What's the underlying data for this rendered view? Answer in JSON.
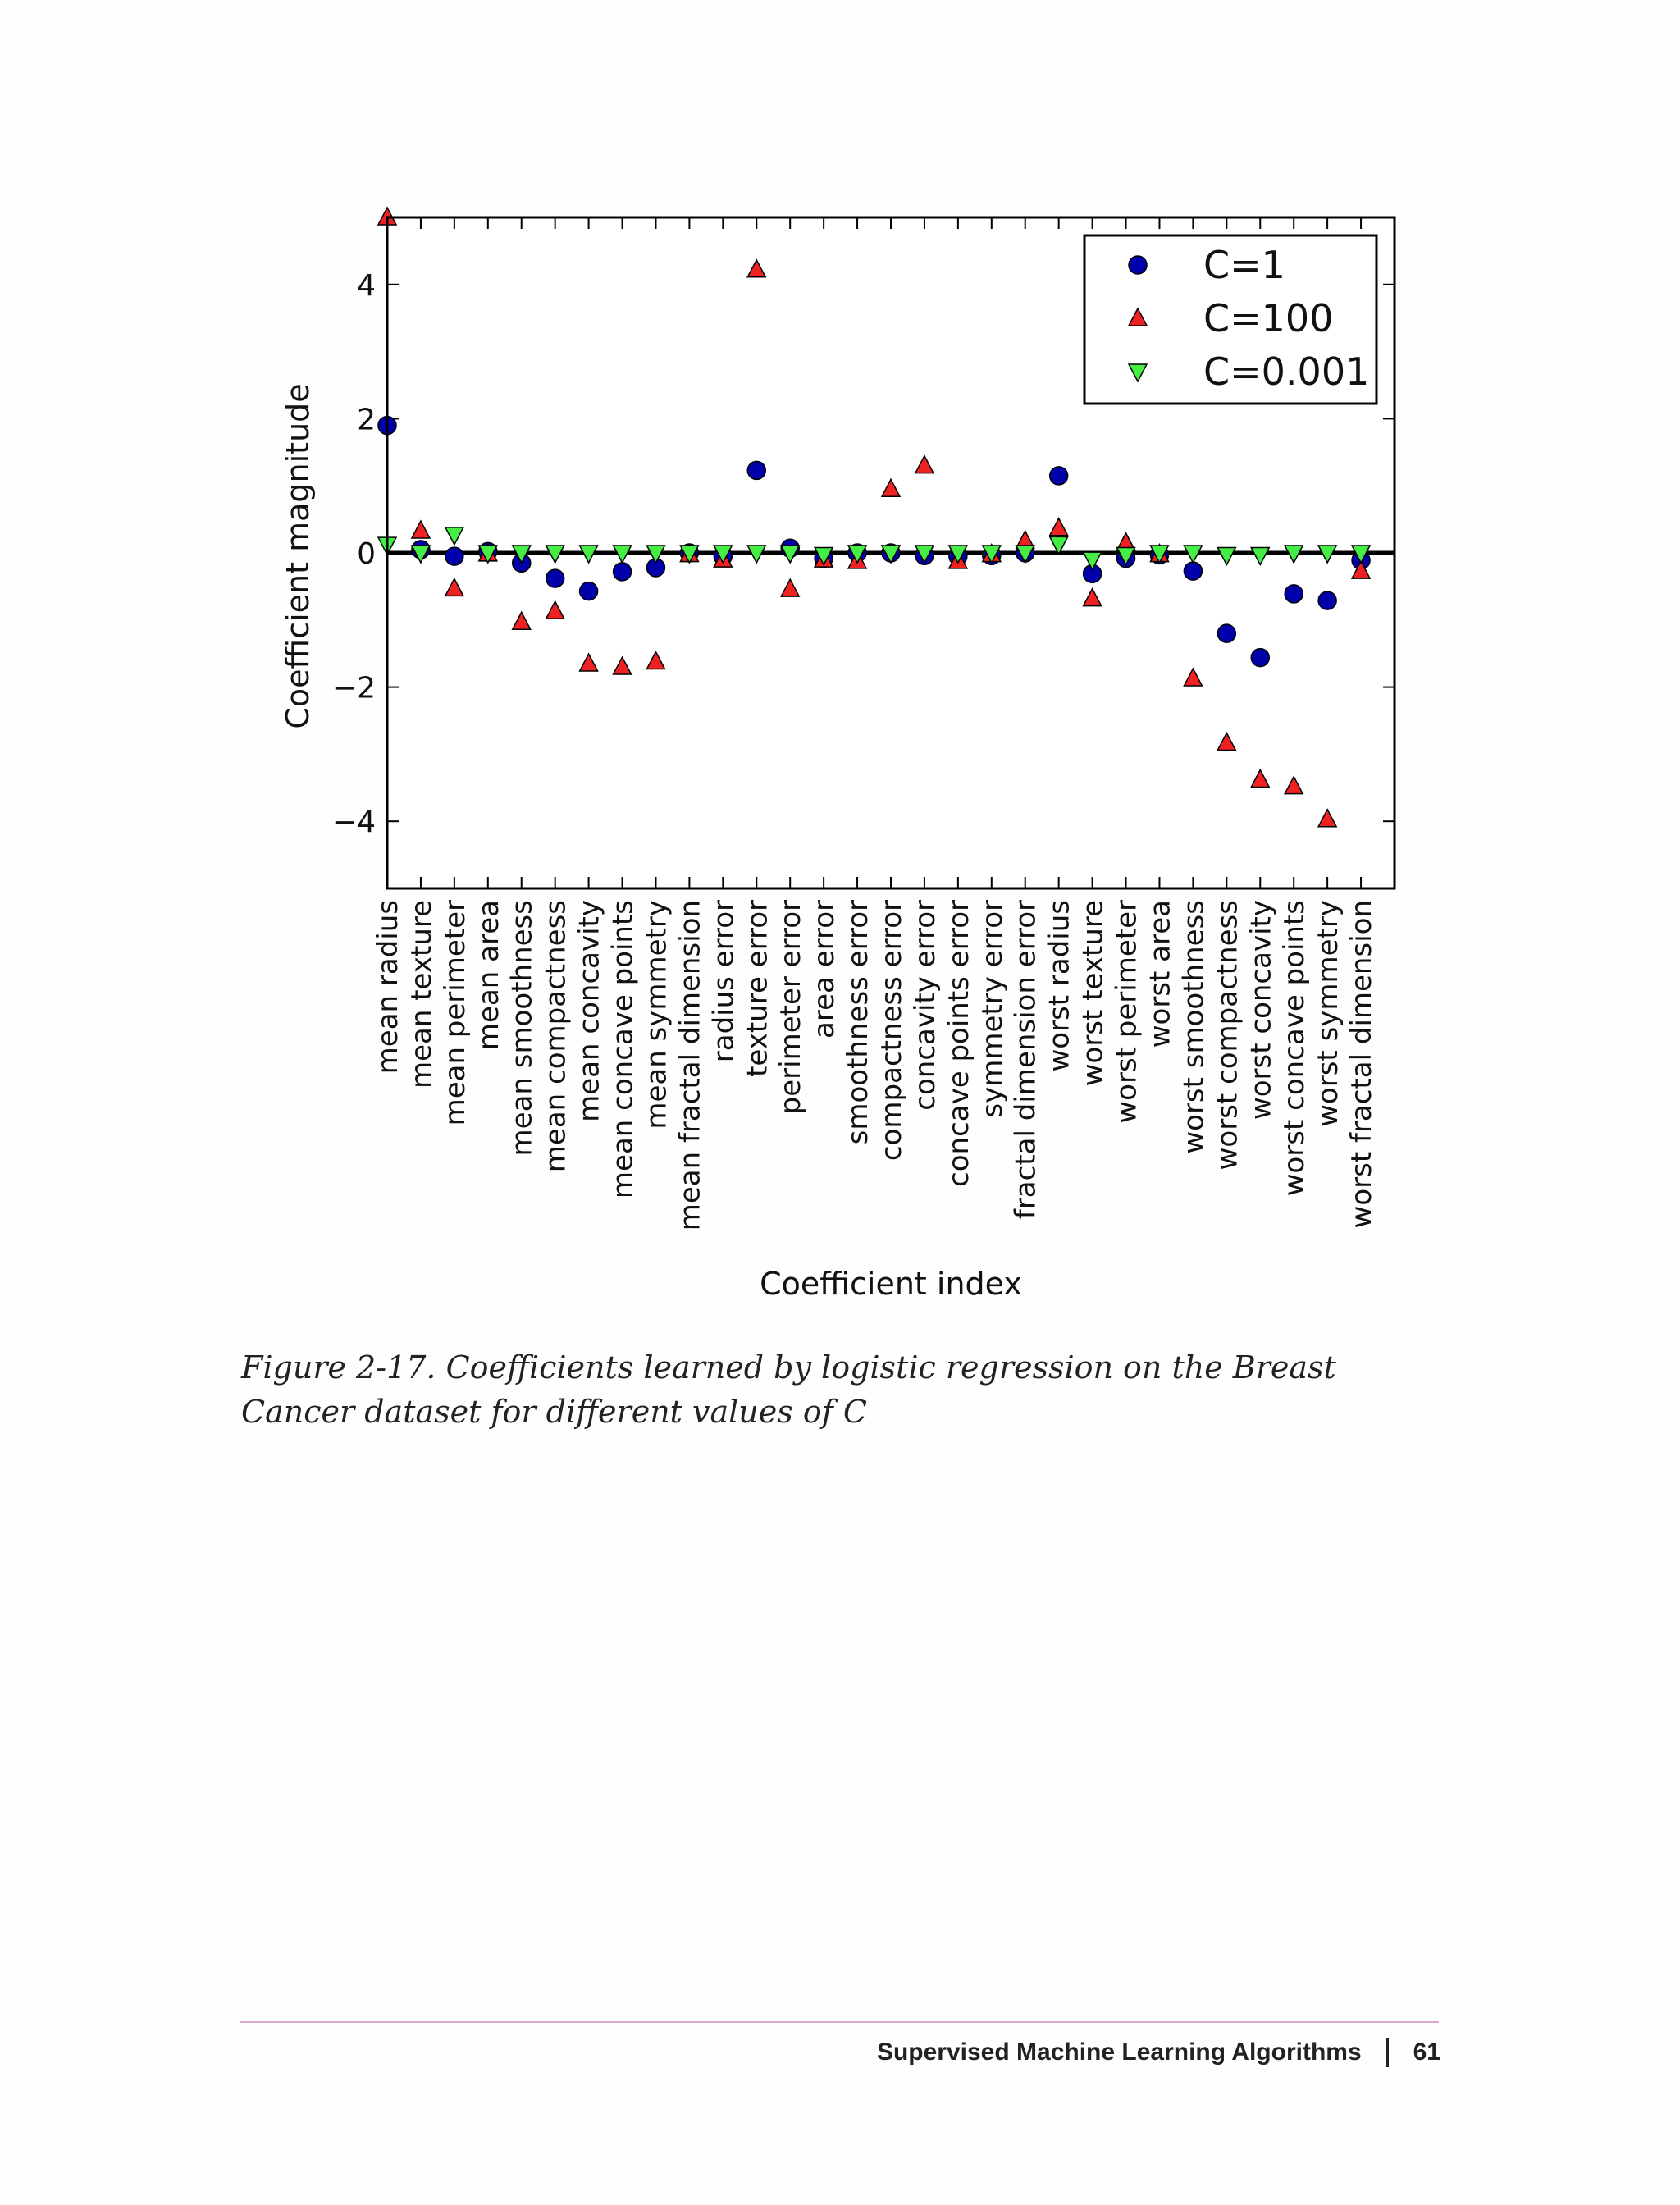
{
  "chart_data": {
    "type": "scatter",
    "xlabel": "Coefficient index",
    "ylabel": "Coefficient magnitude",
    "ylim": [
      -5,
      5
    ],
    "yticks": [
      4,
      2,
      0,
      -2,
      -4
    ],
    "ytick_labels": [
      "4",
      "2",
      "0",
      "−2",
      "−4"
    ],
    "legend_position": "top-right",
    "grid": false,
    "zero_line": true,
    "categories": [
      "mean radius",
      "mean texture",
      "mean perimeter",
      "mean area",
      "mean smoothness",
      "mean compactness",
      "mean concavity",
      "mean concave points",
      "mean symmetry",
      "mean fractal dimension",
      "radius error",
      "texture error",
      "perimeter error",
      "area error",
      "smoothness error",
      "compactness error",
      "concavity error",
      "concave points error",
      "symmetry error",
      "fractal dimension error",
      "worst radius",
      "worst texture",
      "worst perimeter",
      "worst area",
      "worst smoothness",
      "worst compactness",
      "worst concavity",
      "worst concave points",
      "worst symmetry",
      "worst fractal dimension"
    ],
    "series": [
      {
        "name": "C=1",
        "marker": "circle",
        "color": "#0000aa",
        "values": [
          1.9,
          0.05,
          -0.05,
          0.02,
          -0.15,
          -0.38,
          -0.57,
          -0.28,
          -0.22,
          0.0,
          -0.05,
          1.23,
          0.07,
          -0.08,
          0.0,
          0.0,
          -0.04,
          -0.05,
          -0.04,
          0.0,
          1.15,
          -0.31,
          -0.08,
          -0.03,
          -0.27,
          -1.2,
          -1.56,
          -0.61,
          -0.71,
          -0.11
        ]
      },
      {
        "name": "C=100",
        "marker": "triangle-up",
        "color": "#ee2222",
        "values": [
          5.0,
          0.33,
          -0.53,
          -0.01,
          -1.03,
          -0.87,
          -1.65,
          -1.7,
          -1.62,
          -0.02,
          -0.1,
          4.22,
          -0.54,
          -0.1,
          -0.12,
          0.95,
          1.3,
          -0.12,
          -0.02,
          0.18,
          0.37,
          -0.68,
          0.15,
          -0.02,
          -1.87,
          -2.83,
          -3.38,
          -3.48,
          -3.97,
          -0.27
        ]
      },
      {
        "name": "C=0.001",
        "marker": "triangle-down",
        "color": "#44ee44",
        "values": [
          0.12,
          0.0,
          0.27,
          0.0,
          0.0,
          0.0,
          0.0,
          0.0,
          0.0,
          0.0,
          0.0,
          0.0,
          0.0,
          -0.03,
          0.0,
          0.0,
          0.0,
          0.0,
          0.0,
          0.0,
          0.13,
          -0.1,
          -0.03,
          0.0,
          0.0,
          -0.03,
          -0.03,
          0.0,
          0.0,
          0.0
        ]
      }
    ]
  },
  "caption": "Figure 2-17. Coefficients learned by logistic regression on the Breast Cancer dataset for different values of C",
  "footer": {
    "section": "Supervised Machine Learning Algorithms",
    "page_number": "61"
  }
}
